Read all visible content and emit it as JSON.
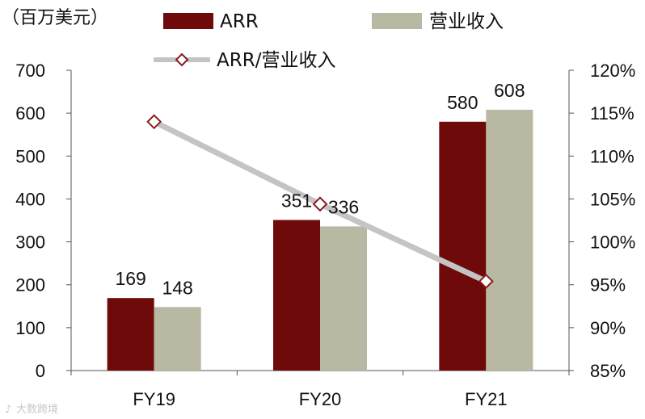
{
  "chart_data": {
    "type": "bar",
    "unit_label": "（百万美元）",
    "categories": [
      "FY19",
      "FY20",
      "FY21"
    ],
    "series": [
      {
        "name": "ARR",
        "kind": "bar",
        "axis": "left",
        "color": "#6e0a0a",
        "values": [
          169,
          351,
          580
        ]
      },
      {
        "name": "营业收入",
        "kind": "bar",
        "axis": "left",
        "color": "#b9b8a3",
        "values": [
          148,
          336,
          608
        ]
      },
      {
        "name": "ARR/营业收入",
        "kind": "line",
        "axis": "right",
        "color": "#c4c4c4",
        "marker_color": "#8b1a1a",
        "values": [
          114.0,
          104.4,
          95.4
        ]
      }
    ],
    "y_left": {
      "min": 0,
      "max": 700,
      "ticks": [
        "0",
        "100",
        "200",
        "300",
        "400",
        "500",
        "600",
        "700"
      ]
    },
    "y_right": {
      "min": 85,
      "max": 120,
      "ticks": [
        "85%",
        "90%",
        "95%",
        "100%",
        "105%",
        "110%",
        "115%",
        "120%"
      ]
    },
    "grid": false,
    "legend_position": "top"
  },
  "watermark": "大数跨境"
}
